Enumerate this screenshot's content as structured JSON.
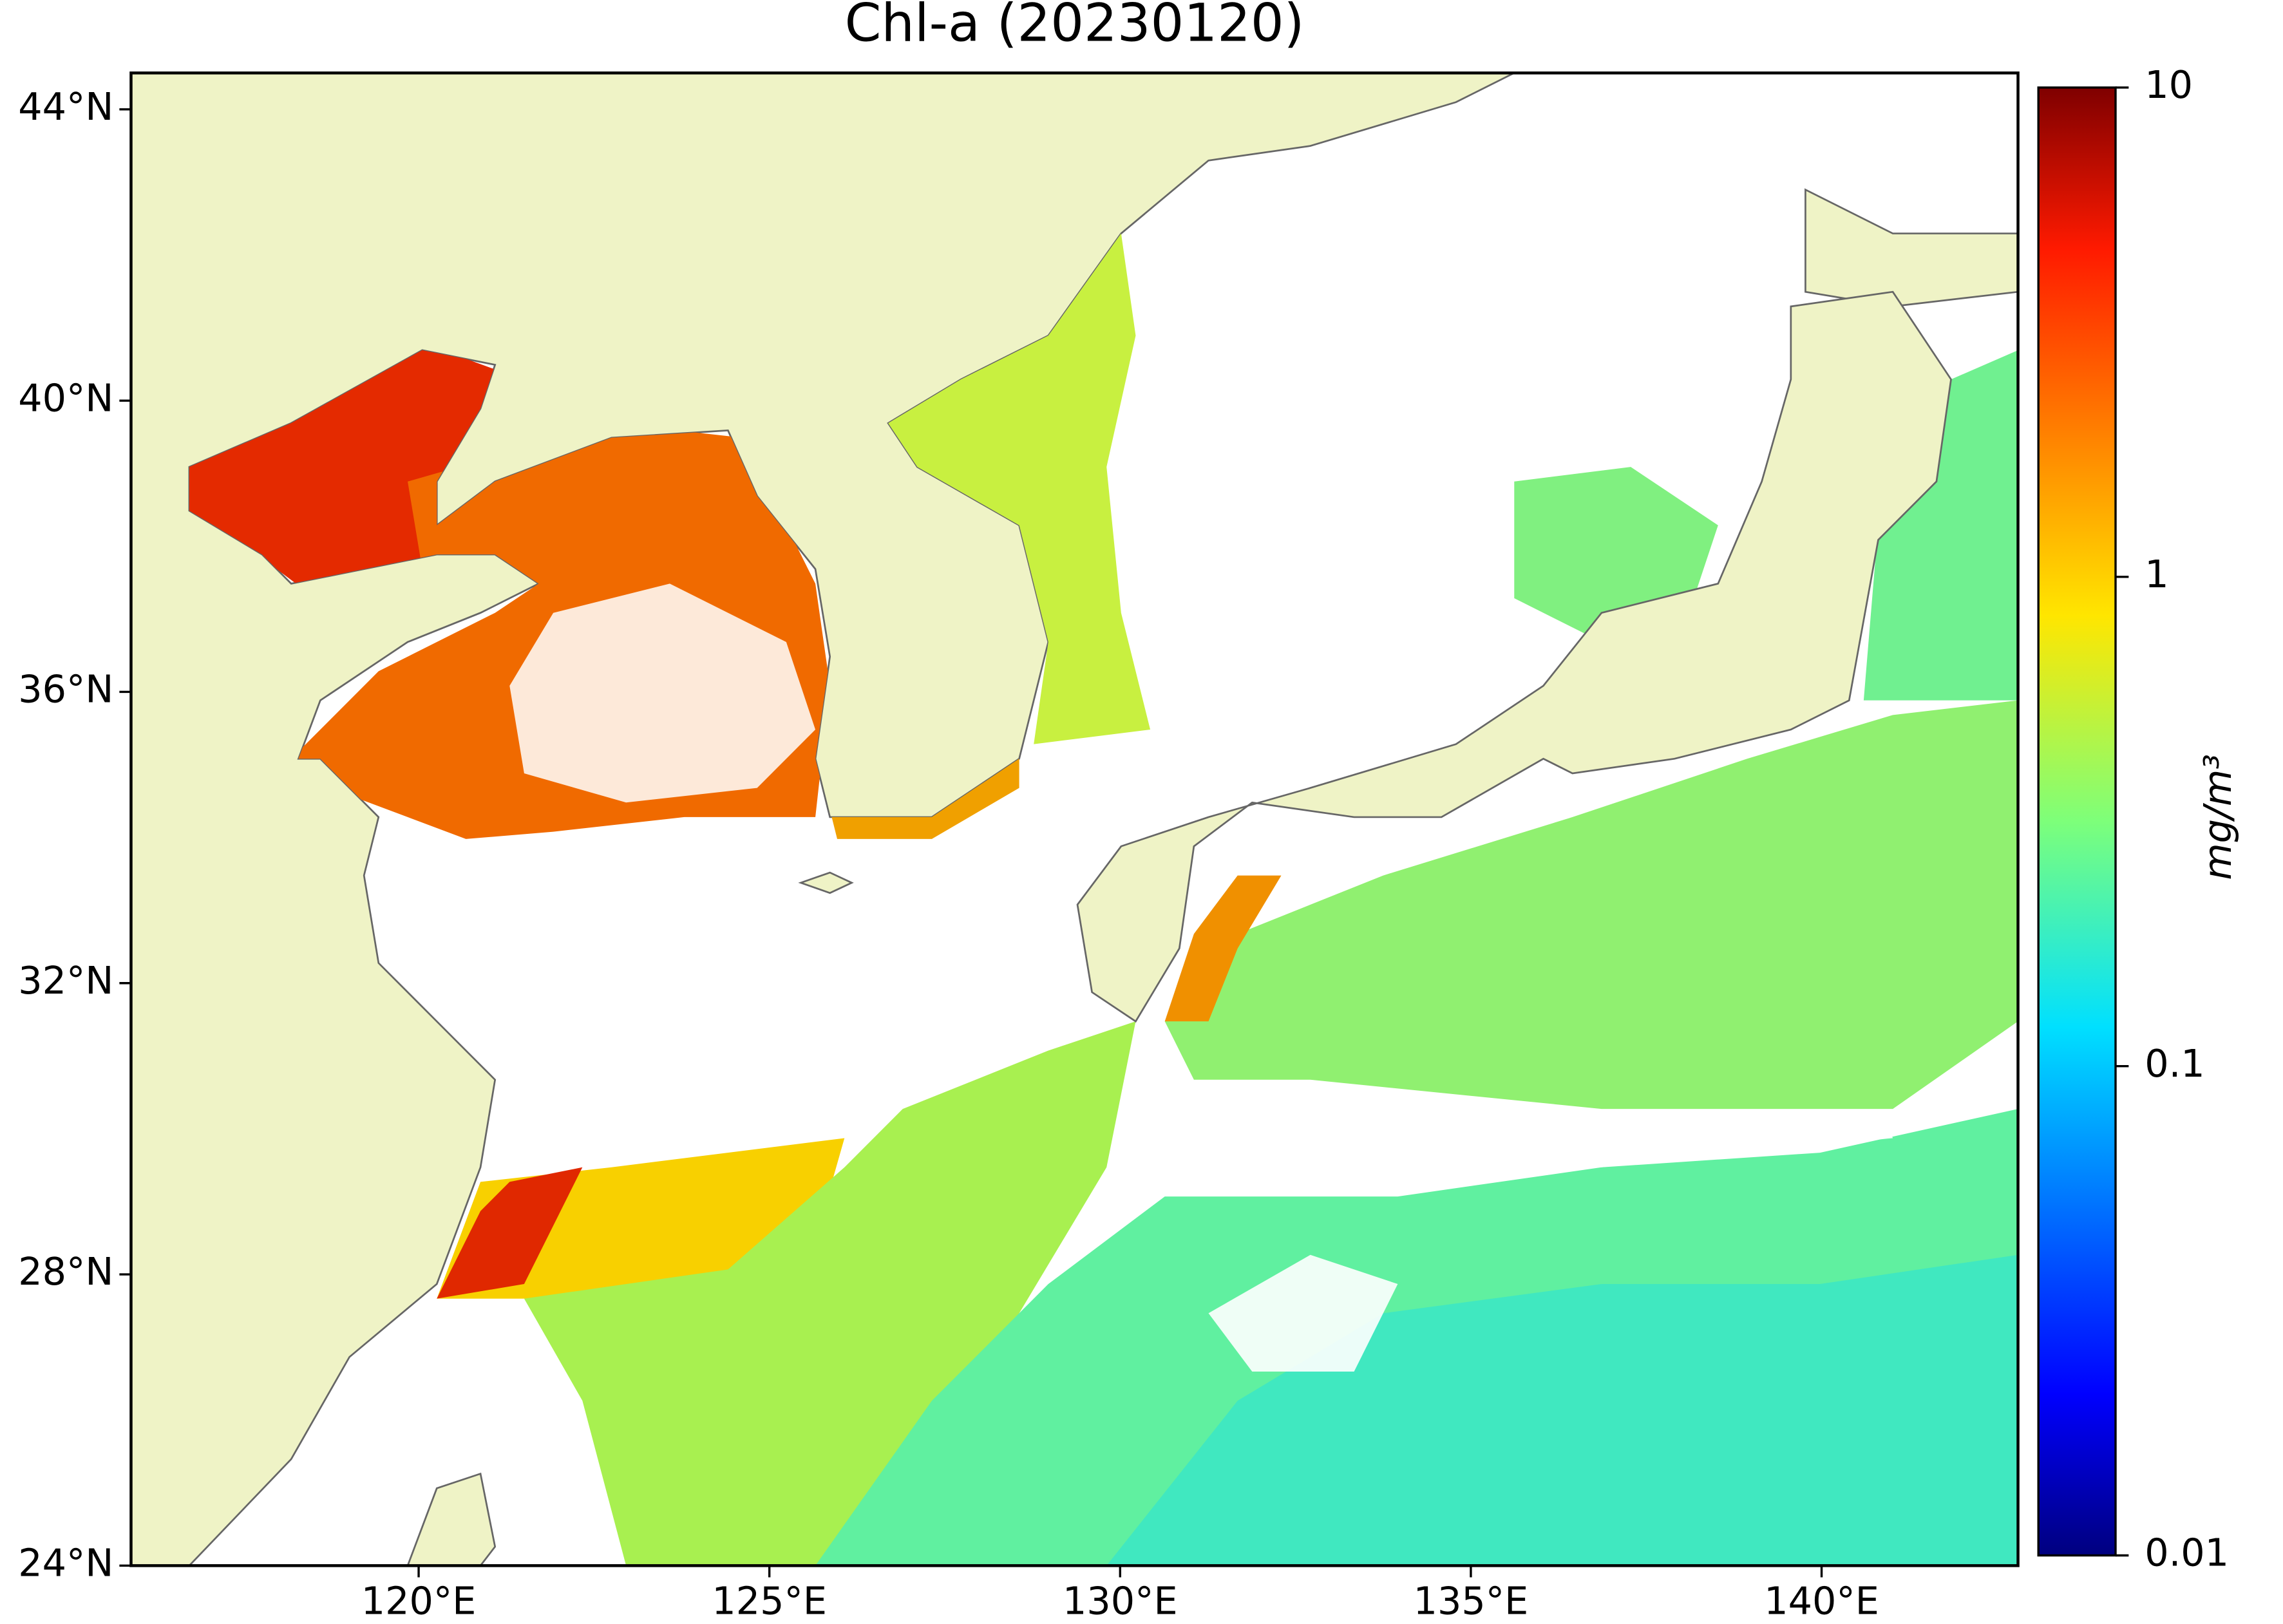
{
  "chart_data": {
    "type": "map",
    "title": "Chl-a (20230120)",
    "xlim": [
      115.9,
      142.8
    ],
    "xticks": [
      {
        "value": 120,
        "label": "120°E"
      },
      {
        "value": 125,
        "label": "125°E"
      },
      {
        "value": 130,
        "label": "130°E"
      },
      {
        "value": 135,
        "label": "135°E"
      },
      {
        "value": 140,
        "label": "140°E"
      }
    ],
    "ylim": [
      24,
      44.5
    ],
    "yticks": [
      {
        "value": 24,
        "label": "24°N"
      },
      {
        "value": 28,
        "label": "28°N"
      },
      {
        "value": 32,
        "label": "32°N"
      },
      {
        "value": 36,
        "label": "36°N"
      },
      {
        "value": 40,
        "label": "40°N"
      },
      {
        "value": 44,
        "label": "44°N"
      }
    ],
    "colorbar": {
      "label": "mg/m³",
      "lim": [
        0.01,
        10
      ],
      "ticks": [
        0.01,
        0.1,
        1,
        10
      ],
      "log": true,
      "colormap": "jet"
    }
  }
}
